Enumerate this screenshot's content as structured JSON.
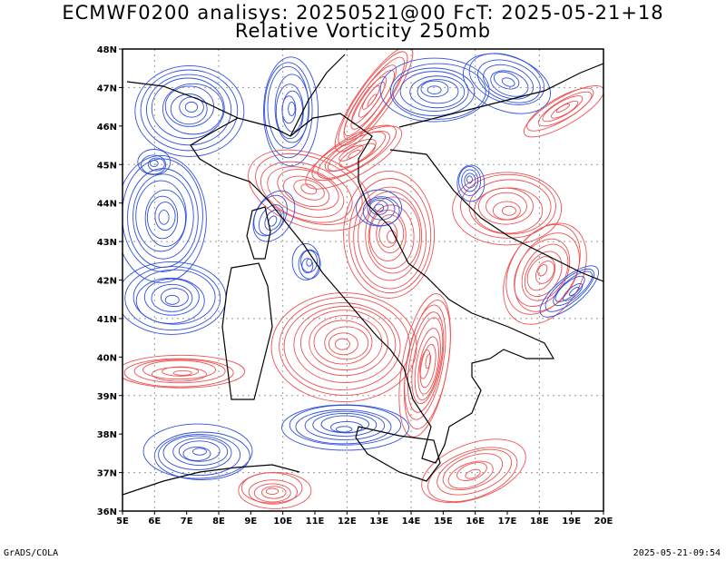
{
  "header": {
    "title_line1": "ECMWF0200 analisys: 20250521@00 FcT: 2025-05-21+18",
    "title_line2": "Relative Vorticity 250mb"
  },
  "map": {
    "lon_range": [
      5,
      20
    ],
    "lat_range": [
      36,
      48
    ],
    "lon_ticks": [
      "5E",
      "6E",
      "7E",
      "8E",
      "9E",
      "10E",
      "11E",
      "12E",
      "13E",
      "14E",
      "15E",
      "16E",
      "17E",
      "18E",
      "19E",
      "20E"
    ],
    "lat_ticks": [
      "36N",
      "37N",
      "38N",
      "39N",
      "40N",
      "41N",
      "42N",
      "43N",
      "44N",
      "45N",
      "46N",
      "47N",
      "48N"
    ],
    "colors": {
      "positive_contour": "#f05050",
      "negative_contour": "#3050e0",
      "coastline": "#000000",
      "grid": "#999999"
    }
  },
  "footer": {
    "left": "GrADS/COLA",
    "right": "2025-05-21-09:54"
  }
}
